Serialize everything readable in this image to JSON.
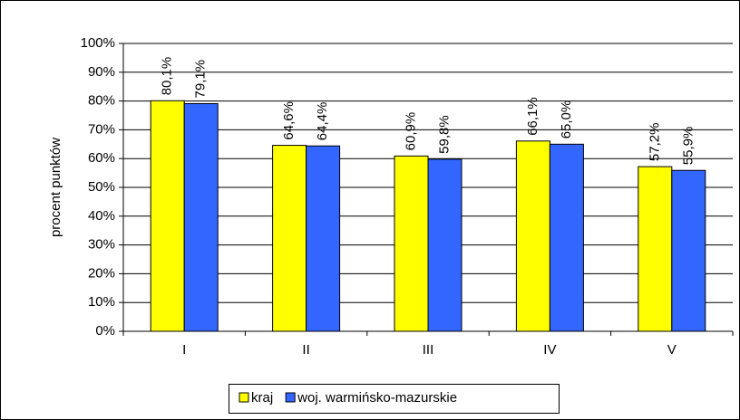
{
  "chart_data": {
    "type": "bar",
    "y_label": "procent punktów",
    "categories": [
      "I",
      "II",
      "III",
      "IV",
      "V"
    ],
    "series": [
      {
        "name": "kraj",
        "color": "#ffff00",
        "values": [
          80.1,
          64.6,
          60.9,
          66.1,
          57.2
        ],
        "value_labels": [
          "80,1%",
          "64,6%",
          "60,9%",
          "66,1%",
          "57,2%"
        ]
      },
      {
        "name": "woj. warmińsko-mazurskie",
        "color": "#3366ff",
        "values": [
          79.1,
          64.4,
          59.8,
          65.0,
          55.9
        ],
        "value_labels": [
          "79,1%",
          "64,4%",
          "59,8%",
          "65,0%",
          "55,9%"
        ]
      }
    ],
    "ylim": [
      0,
      100
    ],
    "yticks": [
      {
        "value": 0,
        "label": "0%"
      },
      {
        "value": 10,
        "label": "10%"
      },
      {
        "value": 20,
        "label": "20%"
      },
      {
        "value": 30,
        "label": "30%"
      },
      {
        "value": 40,
        "label": "40%"
      },
      {
        "value": 50,
        "label": "50%"
      },
      {
        "value": 60,
        "label": "60%"
      },
      {
        "value": 70,
        "label": "70%"
      },
      {
        "value": 80,
        "label": "80%"
      },
      {
        "value": 90,
        "label": "90%"
      },
      {
        "value": 100,
        "label": "100%"
      }
    ],
    "grid": true,
    "legend": "bottom"
  }
}
